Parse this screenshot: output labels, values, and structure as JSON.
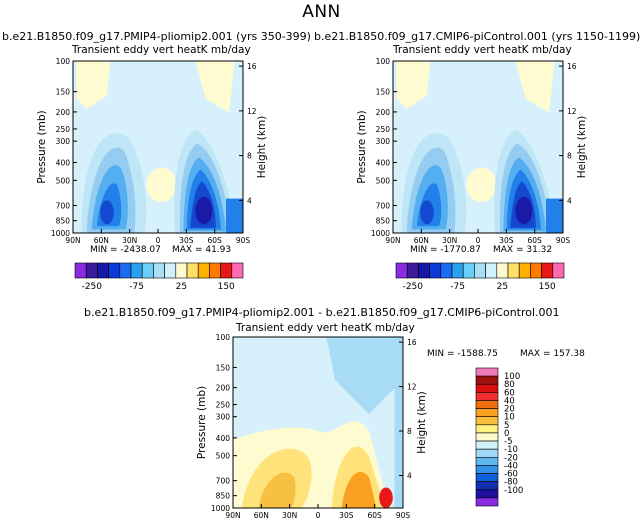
{
  "chart_data": {
    "type": "heatmap",
    "title": "ANN",
    "panels": [
      {
        "case_title": "b.e21.B1850.f09_g17.PMIP4-pliomip2.001 (yrs 350-399)",
        "variable_title": "Transient eddy vert heatK mb/day",
        "min_label": "MIN = -2438.07",
        "max_label": "MAX = 41.93",
        "colorbar_ticks": [
          "-250",
          "-75",
          "25",
          "150"
        ]
      },
      {
        "case_title": "b.e21.B1850.f09_g17.CMIP6-piControl.001 (yrs 1150-1199)",
        "variable_title": "Transient eddy vert heatK mb/day",
        "min_label": "MIN = -1770.87",
        "max_label": "MAX = 31.32",
        "colorbar_ticks": [
          "-250",
          "-75",
          "25",
          "150"
        ]
      },
      {
        "case_title": "b.e21.B1850.f09_g17.PMIP4-pliomip2.001 - b.e21.B1850.f09_g17.CMIP6-piControl.001",
        "variable_title": "Transient eddy vert heatK mb/day",
        "min_label": "MIN = -1588.75",
        "max_label": "MAX = 157.38",
        "colorbar_ticks": [
          "100",
          "80",
          "60",
          "40",
          "20",
          "10",
          "5",
          "0",
          "-5",
          "-10",
          "-20",
          "-40",
          "-60",
          "-80",
          "-100"
        ]
      }
    ],
    "x_ticks": [
      "90N",
      "60N",
      "30N",
      "0",
      "30S",
      "60S",
      "90S"
    ],
    "y_ticks_pressure": [
      "100",
      "150",
      "200",
      "250",
      "300",
      "400",
      "500",
      "700",
      "850",
      "1000"
    ],
    "y_ticks_height": [
      "16",
      "12",
      "8",
      "4"
    ],
    "ylabel": "Pressure (mb)",
    "ylabel_right": "Height (km)",
    "mean_colorbar_colors": [
      "#8a2be2",
      "#3a1a9a",
      "#1818a8",
      "#0a3ad8",
      "#1a6cf0",
      "#2aa0f0",
      "#6ad0f8",
      "#a8e0f8",
      "#d0f0fa",
      "#fffacd",
      "#ffe066",
      "#ffb000",
      "#ff7a00",
      "#e81818",
      "#ff69b4"
    ],
    "diff_colorbar_colors": [
      "#f07ab8",
      "#a01010",
      "#d81010",
      "#f03030",
      "#f07010",
      "#f8a020",
      "#f8c040",
      "#fff080",
      "#fffacd",
      "#d0f0fa",
      "#a0d8f8",
      "#60b8f0",
      "#3090e8",
      "#1060d8",
      "#1030b0",
      "#2010a0",
      "#8a2be2"
    ]
  }
}
